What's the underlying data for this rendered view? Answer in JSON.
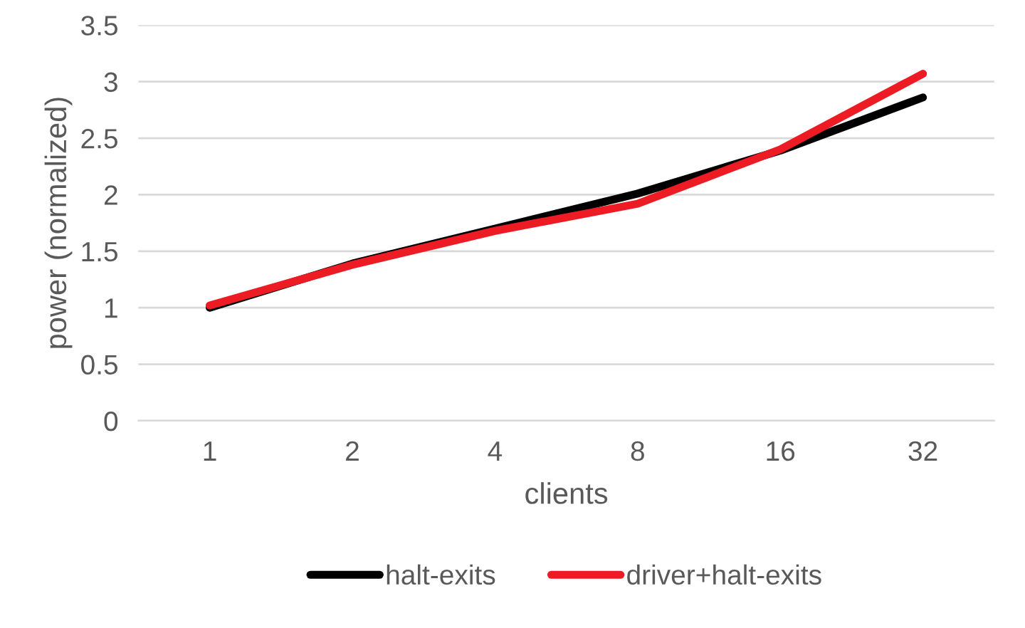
{
  "chart_data": {
    "type": "line",
    "xlabel": "clients",
    "ylabel": "power (normalized)",
    "categories": [
      "1",
      "2",
      "4",
      "8",
      "16",
      "32"
    ],
    "series": [
      {
        "name": "halt-exits",
        "color": "#000000",
        "values": [
          1.0,
          1.39,
          1.7,
          2.01,
          2.39,
          2.86
        ]
      },
      {
        "name": "driver+halt-exits",
        "color": "#ed1c24",
        "values": [
          1.02,
          1.38,
          1.68,
          1.92,
          2.4,
          3.07
        ]
      }
    ],
    "ylim": [
      0,
      3.5
    ],
    "yticks": [
      0,
      0.5,
      1,
      1.5,
      2,
      2.5,
      3,
      3.5
    ],
    "grid": "y",
    "legend": "bottom",
    "marker": "none",
    "line_style": "solid"
  }
}
